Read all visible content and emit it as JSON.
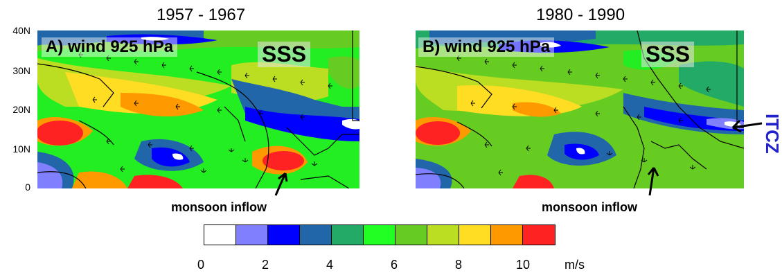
{
  "panels": [
    {
      "title": "1957 - 1967",
      "label": "A) wind 925 hPa",
      "sss": "SSS",
      "annotation": "monsoon inflow"
    },
    {
      "title": "1980 - 1990",
      "label": "B) wind 925 hPa",
      "sss": "SSS",
      "annotation": "monsoon inflow",
      "itcz": "ITCZ"
    }
  ],
  "y_axis": {
    "ticks": [
      "40N",
      "30N",
      "20N",
      "10N",
      "0"
    ]
  },
  "colorbar": {
    "colors": [
      "#ffffff",
      "#8080ff",
      "#0000ff",
      "#2266aa",
      "#22aa66",
      "#22ff22",
      "#66cc22",
      "#bbdd22",
      "#ffdd22",
      "#ff9900",
      "#ff2222"
    ],
    "tick_labels": [
      "0",
      "2",
      "4",
      "6",
      "8",
      "10"
    ],
    "unit": "m/s"
  },
  "chart_data": {
    "type": "map",
    "variable": "wind speed at 925 hPa",
    "units": "m/s",
    "colorbar_range": [
      0,
      11
    ],
    "latitude_ticks": [
      "40N",
      "30N",
      "20N",
      "10N",
      "0"
    ]
  }
}
